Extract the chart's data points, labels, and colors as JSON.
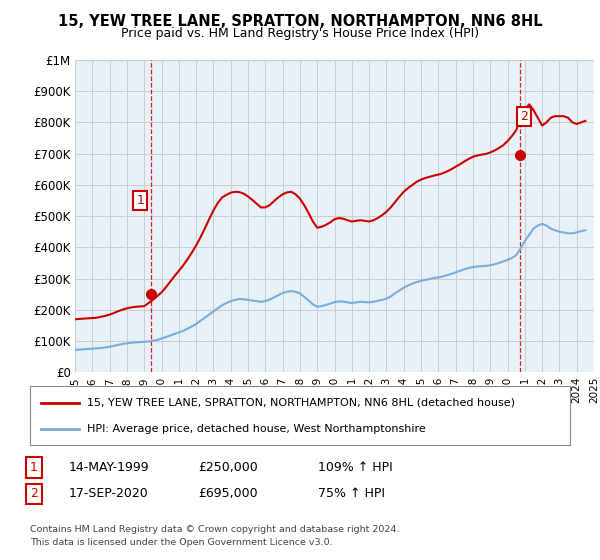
{
  "title": "15, YEW TREE LANE, SPRATTON, NORTHAMPTON, NN6 8HL",
  "subtitle": "Price paid vs. HM Land Registry's House Price Index (HPI)",
  "legend_line1": "15, YEW TREE LANE, SPRATTON, NORTHAMPTON, NN6 8HL (detached house)",
  "legend_line2": "HPI: Average price, detached house, West Northamptonshire",
  "footer": "Contains HM Land Registry data © Crown copyright and database right 2024.\nThis data is licensed under the Open Government Licence v3.0.",
  "sale1_label": "1",
  "sale1_date": "14-MAY-1999",
  "sale1_price": "£250,000",
  "sale1_hpi": "109% ↑ HPI",
  "sale2_label": "2",
  "sale2_date": "17-SEP-2020",
  "sale2_price": "£695,000",
  "sale2_hpi": "75% ↑ HPI",
  "red_color": "#cc0000",
  "blue_color": "#7aaddc",
  "background_color": "#ffffff",
  "grid_color": "#cccccc",
  "plot_bg_color": "#e8f0f8",
  "ylim": [
    0,
    1000000
  ],
  "yticks": [
    0,
    100000,
    200000,
    300000,
    400000,
    500000,
    600000,
    700000,
    800000,
    900000,
    1000000
  ],
  "ytick_labels": [
    "£0",
    "£100K",
    "£200K",
    "£300K",
    "£400K",
    "£500K",
    "£600K",
    "£700K",
    "£800K",
    "£900K",
    "£1M"
  ],
  "hpi_years": [
    1995.0,
    1995.25,
    1995.5,
    1995.75,
    1996.0,
    1996.25,
    1996.5,
    1996.75,
    1997.0,
    1997.25,
    1997.5,
    1997.75,
    1998.0,
    1998.25,
    1998.5,
    1998.75,
    1999.0,
    1999.25,
    1999.5,
    1999.75,
    2000.0,
    2000.25,
    2000.5,
    2000.75,
    2001.0,
    2001.25,
    2001.5,
    2001.75,
    2002.0,
    2002.25,
    2002.5,
    2002.75,
    2003.0,
    2003.25,
    2003.5,
    2003.75,
    2004.0,
    2004.25,
    2004.5,
    2004.75,
    2005.0,
    2005.25,
    2005.5,
    2005.75,
    2006.0,
    2006.25,
    2006.5,
    2006.75,
    2007.0,
    2007.25,
    2007.5,
    2007.75,
    2008.0,
    2008.25,
    2008.5,
    2008.75,
    2009.0,
    2009.25,
    2009.5,
    2009.75,
    2010.0,
    2010.25,
    2010.5,
    2010.75,
    2011.0,
    2011.25,
    2011.5,
    2011.75,
    2012.0,
    2012.25,
    2012.5,
    2012.75,
    2013.0,
    2013.25,
    2013.5,
    2013.75,
    2014.0,
    2014.25,
    2014.5,
    2014.75,
    2015.0,
    2015.25,
    2015.5,
    2015.75,
    2016.0,
    2016.25,
    2016.5,
    2016.75,
    2017.0,
    2017.25,
    2017.5,
    2017.75,
    2018.0,
    2018.25,
    2018.5,
    2018.75,
    2019.0,
    2019.25,
    2019.5,
    2019.75,
    2020.0,
    2020.25,
    2020.5,
    2020.75,
    2021.0,
    2021.25,
    2021.5,
    2021.75,
    2022.0,
    2022.25,
    2022.5,
    2022.75,
    2023.0,
    2023.25,
    2023.5,
    2023.75,
    2024.0,
    2024.25,
    2024.5
  ],
  "hpi_values": [
    72000,
    73000,
    74000,
    75000,
    76000,
    77000,
    78000,
    80000,
    82000,
    85000,
    88000,
    91000,
    93000,
    95000,
    96000,
    97000,
    98000,
    99000,
    101000,
    104000,
    108000,
    113000,
    118000,
    123000,
    128000,
    133000,
    140000,
    147000,
    155000,
    165000,
    175000,
    185000,
    195000,
    205000,
    215000,
    222000,
    228000,
    232000,
    235000,
    234000,
    232000,
    230000,
    228000,
    226000,
    228000,
    233000,
    240000,
    247000,
    254000,
    258000,
    260000,
    258000,
    253000,
    242000,
    230000,
    218000,
    210000,
    212000,
    216000,
    220000,
    225000,
    227000,
    227000,
    224000,
    222000,
    224000,
    226000,
    225000,
    224000,
    226000,
    229000,
    232000,
    236000,
    243000,
    253000,
    262000,
    271000,
    278000,
    284000,
    289000,
    293000,
    296000,
    299000,
    302000,
    304000,
    307000,
    311000,
    315000,
    320000,
    325000,
    330000,
    334000,
    337000,
    339000,
    340000,
    341000,
    343000,
    346000,
    350000,
    355000,
    360000,
    366000,
    375000,
    396000,
    420000,
    440000,
    460000,
    470000,
    475000,
    470000,
    460000,
    455000,
    450000,
    448000,
    445000,
    445000,
    448000,
    452000,
    455000
  ],
  "red_years": [
    1995.0,
    1995.25,
    1995.5,
    1995.75,
    1996.0,
    1996.25,
    1996.5,
    1996.75,
    1997.0,
    1997.25,
    1997.5,
    1997.75,
    1998.0,
    1998.25,
    1998.5,
    1998.75,
    1999.0,
    1999.25,
    1999.5,
    1999.75,
    2000.0,
    2000.25,
    2000.5,
    2000.75,
    2001.0,
    2001.25,
    2001.5,
    2001.75,
    2002.0,
    2002.25,
    2002.5,
    2002.75,
    2003.0,
    2003.25,
    2003.5,
    2003.75,
    2004.0,
    2004.25,
    2004.5,
    2004.75,
    2005.0,
    2005.25,
    2005.5,
    2005.75,
    2006.0,
    2006.25,
    2006.5,
    2006.75,
    2007.0,
    2007.25,
    2007.5,
    2007.75,
    2008.0,
    2008.25,
    2008.5,
    2008.75,
    2009.0,
    2009.25,
    2009.5,
    2009.75,
    2010.0,
    2010.25,
    2010.5,
    2010.75,
    2011.0,
    2011.25,
    2011.5,
    2011.75,
    2012.0,
    2012.25,
    2012.5,
    2012.75,
    2013.0,
    2013.25,
    2013.5,
    2013.75,
    2014.0,
    2014.25,
    2014.5,
    2014.75,
    2015.0,
    2015.25,
    2015.5,
    2015.75,
    2016.0,
    2016.25,
    2016.5,
    2016.75,
    2017.0,
    2017.25,
    2017.5,
    2017.75,
    2018.0,
    2018.25,
    2018.5,
    2018.75,
    2019.0,
    2019.25,
    2019.5,
    2019.75,
    2020.0,
    2020.25,
    2020.5,
    2020.75,
    2021.0,
    2021.25,
    2021.5,
    2021.75,
    2022.0,
    2022.25,
    2022.5,
    2022.75,
    2023.0,
    2023.25,
    2023.5,
    2023.75,
    2024.0,
    2024.25,
    2024.5
  ],
  "red_values": [
    170000,
    171000,
    172000,
    173000,
    174000,
    175000,
    178000,
    181000,
    185000,
    190000,
    196000,
    201000,
    205000,
    208000,
    210000,
    211000,
    212000,
    222000,
    232000,
    244000,
    256000,
    272000,
    290000,
    308000,
    325000,
    342000,
    362000,
    383000,
    406000,
    432000,
    460000,
    490000,
    518000,
    542000,
    560000,
    568000,
    575000,
    578000,
    577000,
    572000,
    563000,
    552000,
    540000,
    528000,
    528000,
    535000,
    548000,
    560000,
    570000,
    576000,
    578000,
    570000,
    556000,
    535000,
    510000,
    483000,
    463000,
    466000,
    472000,
    480000,
    490000,
    494000,
    492000,
    487000,
    483000,
    485000,
    487000,
    485000,
    483000,
    487000,
    494000,
    503000,
    514000,
    528000,
    545000,
    562000,
    578000,
    590000,
    600000,
    610000,
    617000,
    622000,
    626000,
    630000,
    633000,
    637000,
    643000,
    650000,
    658000,
    666000,
    675000,
    683000,
    690000,
    694000,
    697000,
    699000,
    704000,
    710000,
    718000,
    727000,
    740000,
    756000,
    775000,
    810000,
    840000,
    858000,
    840000,
    815000,
    790000,
    800000,
    815000,
    820000,
    820000,
    820000,
    815000,
    800000,
    795000,
    800000,
    805000
  ],
  "sale1_year": 1999.37,
  "sale1_value": 250000,
  "sale2_year": 2020.71,
  "sale2_value": 695000,
  "vline1_year": 1999.37,
  "vline2_year": 2020.71
}
